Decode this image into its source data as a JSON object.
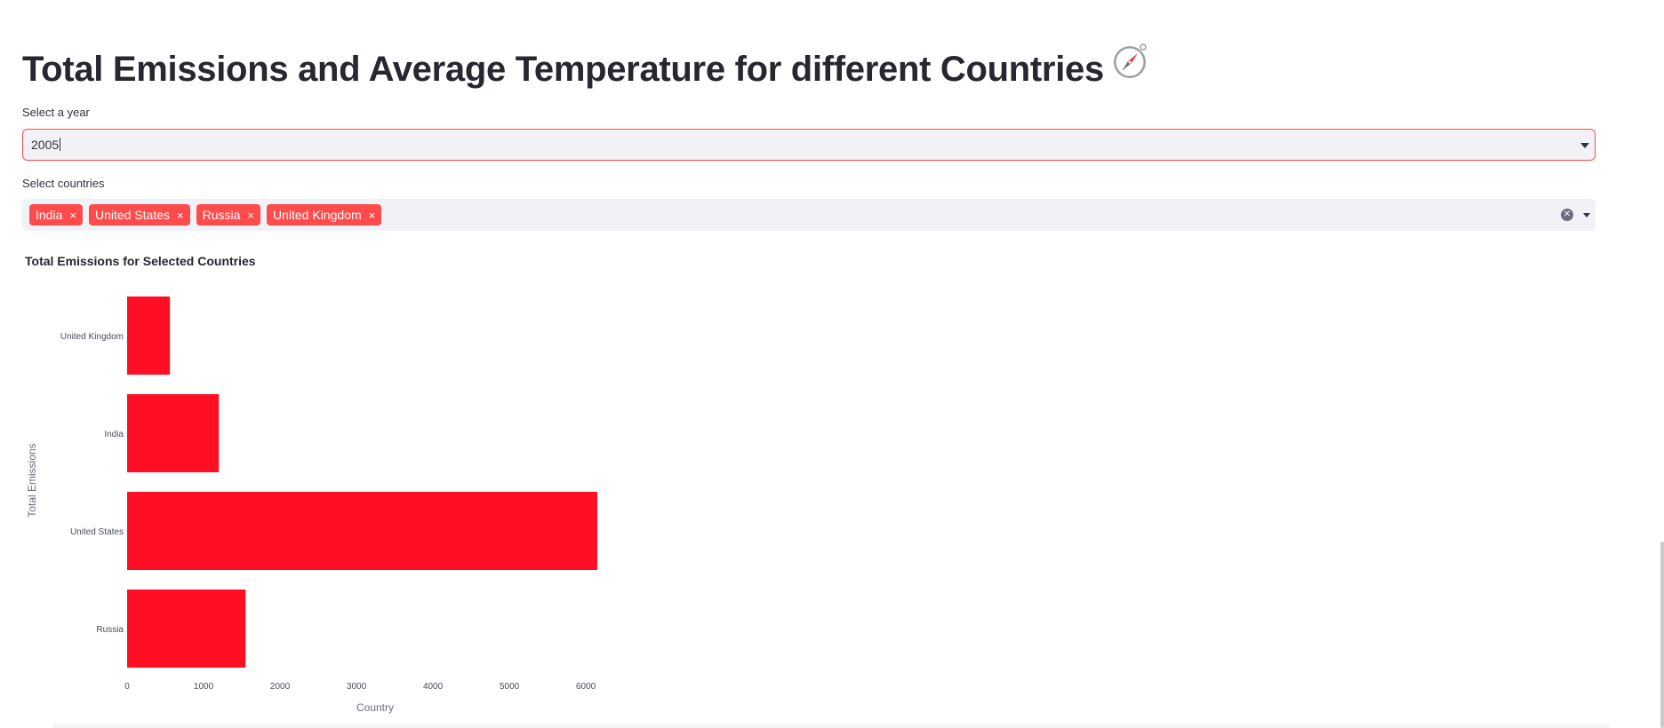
{
  "page": {
    "title": "Total Emissions and Average Temperature for different Countries",
    "title_icon": "compass-icon"
  },
  "year_select": {
    "label": "Select a year",
    "value": "2005"
  },
  "country_select": {
    "label": "Select countries",
    "tags": [
      "India",
      "United States",
      "Russia",
      "United Kingdom"
    ],
    "remove_glyph": "×"
  },
  "accent_color": "#ff4b4b",
  "bar_color": "#ff0e24",
  "chart_data": {
    "type": "bar",
    "orientation": "horizontal",
    "title": "Total Emissions for Selected Countries",
    "xlabel": "Country",
    "ylabel": "Total Emissions",
    "categories": [
      "United Kingdom",
      "India",
      "United States",
      "Russia"
    ],
    "values": [
      560,
      1200,
      6150,
      1550
    ],
    "xlim": [
      0,
      6150
    ],
    "xticks": [
      0,
      1000,
      2000,
      3000,
      4000,
      5000,
      6000
    ],
    "grid": false
  }
}
